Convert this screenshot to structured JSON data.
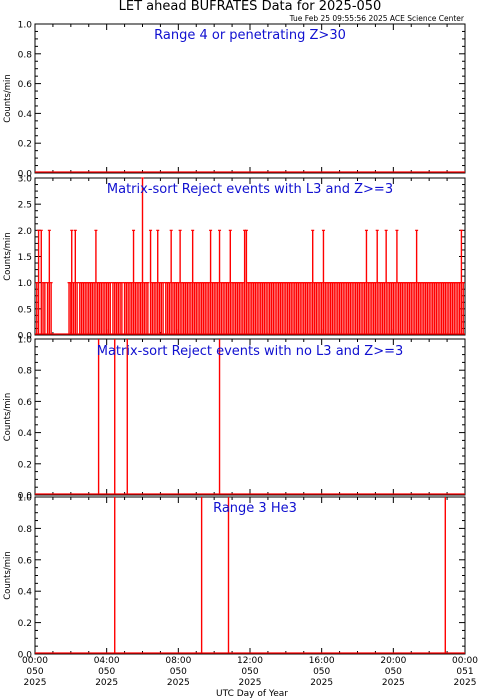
{
  "title": "LET ahead BUFRATES Data for 2025-050",
  "timestamp": "Tue Feb 25 09:55:56 2025 ACE Science Center",
  "x_axis_label": "UTC Day of Year",
  "x_ticks": [
    {
      "time": "00:00",
      "doy": "050",
      "year": "2025"
    },
    {
      "time": "04:00",
      "doy": "050",
      "year": "2025"
    },
    {
      "time": "08:00",
      "doy": "050",
      "year": "2025"
    },
    {
      "time": "12:00",
      "doy": "050",
      "year": "2025"
    },
    {
      "time": "16:00",
      "doy": "050",
      "year": "2025"
    },
    {
      "time": "20:00",
      "doy": "050",
      "year": "2025"
    },
    {
      "time": "00:00",
      "doy": "051",
      "year": "2025"
    }
  ],
  "colors": {
    "data": "#ff0000",
    "panel_title": "#1010d0",
    "axes": "#000000"
  },
  "chart_data": [
    {
      "type": "line",
      "title": "Range 4 or   penetrating Z>30",
      "ylabel": "Counts/min",
      "ylim": [
        0,
        1.0
      ],
      "yticks": [
        "0.0",
        "0.2",
        "0.4",
        "0.6",
        "0.8",
        "1.0"
      ],
      "xlim_hours": [
        0,
        24
      ],
      "spikes": []
    },
    {
      "type": "line",
      "title": "Matrix-sort Reject events with L3 and Z>=3",
      "ylabel": "Counts/min",
      "ylim": [
        0,
        3.0
      ],
      "yticks": [
        "0.0",
        "0.5",
        "1.0",
        "1.5",
        "2.0",
        "2.5",
        "3.0"
      ],
      "xlim_hours": [
        0,
        24
      ],
      "spikes": [
        {
          "x": 0.1,
          "y": 1
        },
        {
          "x": 0.2,
          "y": 2
        },
        {
          "x": 0.35,
          "y": 2
        },
        {
          "x": 0.45,
          "y": 1
        },
        {
          "x": 0.55,
          "y": 1
        },
        {
          "x": 0.7,
          "y": 1
        },
        {
          "x": 0.8,
          "y": 2
        },
        {
          "x": 0.9,
          "y": 1
        },
        {
          "x": 1.9,
          "y": 1
        },
        {
          "x": 2.0,
          "y": 1
        },
        {
          "x": 2.05,
          "y": 2
        },
        {
          "x": 2.15,
          "y": 1
        },
        {
          "x": 2.25,
          "y": 2
        },
        {
          "x": 2.35,
          "y": 1
        },
        {
          "x": 2.5,
          "y": 1
        },
        {
          "x": 2.6,
          "y": 1
        },
        {
          "x": 2.7,
          "y": 1
        },
        {
          "x": 2.8,
          "y": 1
        },
        {
          "x": 2.9,
          "y": 1
        },
        {
          "x": 3.0,
          "y": 1
        },
        {
          "x": 3.1,
          "y": 1
        },
        {
          "x": 3.2,
          "y": 1
        },
        {
          "x": 3.3,
          "y": 1
        },
        {
          "x": 3.4,
          "y": 2
        },
        {
          "x": 3.5,
          "y": 1
        },
        {
          "x": 3.6,
          "y": 1
        },
        {
          "x": 3.7,
          "y": 1
        },
        {
          "x": 3.8,
          "y": 1
        },
        {
          "x": 3.9,
          "y": 1
        },
        {
          "x": 4.0,
          "y": 1
        },
        {
          "x": 4.1,
          "y": 1
        },
        {
          "x": 4.2,
          "y": 1
        },
        {
          "x": 4.35,
          "y": 1
        },
        {
          "x": 4.45,
          "y": 1
        },
        {
          "x": 4.55,
          "y": 1
        },
        {
          "x": 4.65,
          "y": 1
        },
        {
          "x": 4.75,
          "y": 1
        },
        {
          "x": 4.85,
          "y": 1
        },
        {
          "x": 5.0,
          "y": 1
        },
        {
          "x": 5.1,
          "y": 1
        },
        {
          "x": 5.2,
          "y": 1
        },
        {
          "x": 5.3,
          "y": 1
        },
        {
          "x": 5.4,
          "y": 1
        },
        {
          "x": 5.5,
          "y": 2
        },
        {
          "x": 5.6,
          "y": 1
        },
        {
          "x": 5.7,
          "y": 1
        },
        {
          "x": 5.8,
          "y": 1
        },
        {
          "x": 5.9,
          "y": 1
        },
        {
          "x": 6.0,
          "y": 3
        },
        {
          "x": 6.1,
          "y": 1
        },
        {
          "x": 6.2,
          "y": 1
        },
        {
          "x": 6.3,
          "y": 1
        },
        {
          "x": 6.45,
          "y": 2
        },
        {
          "x": 6.55,
          "y": 1
        },
        {
          "x": 6.65,
          "y": 1
        },
        {
          "x": 6.75,
          "y": 1
        },
        {
          "x": 6.85,
          "y": 2
        },
        {
          "x": 6.95,
          "y": 1
        },
        {
          "x": 7.05,
          "y": 1
        },
        {
          "x": 7.15,
          "y": 1
        },
        {
          "x": 7.3,
          "y": 1
        },
        {
          "x": 7.4,
          "y": 1
        },
        {
          "x": 7.5,
          "y": 1
        },
        {
          "x": 7.6,
          "y": 2
        },
        {
          "x": 7.7,
          "y": 1
        },
        {
          "x": 7.8,
          "y": 1
        },
        {
          "x": 7.9,
          "y": 1
        },
        {
          "x": 8.0,
          "y": 1
        },
        {
          "x": 8.1,
          "y": 2
        },
        {
          "x": 8.2,
          "y": 1
        },
        {
          "x": 8.3,
          "y": 1
        },
        {
          "x": 8.4,
          "y": 1
        },
        {
          "x": 8.5,
          "y": 1
        },
        {
          "x": 8.6,
          "y": 1
        },
        {
          "x": 8.7,
          "y": 1
        },
        {
          "x": 8.8,
          "y": 2
        },
        {
          "x": 8.9,
          "y": 1
        },
        {
          "x": 9.0,
          "y": 1
        },
        {
          "x": 9.1,
          "y": 1
        },
        {
          "x": 9.2,
          "y": 1
        },
        {
          "x": 9.3,
          "y": 1
        },
        {
          "x": 9.4,
          "y": 1
        },
        {
          "x": 9.5,
          "y": 1
        },
        {
          "x": 9.6,
          "y": 1
        },
        {
          "x": 9.7,
          "y": 1
        },
        {
          "x": 9.8,
          "y": 2
        },
        {
          "x": 9.9,
          "y": 1
        },
        {
          "x": 10.0,
          "y": 1
        },
        {
          "x": 10.1,
          "y": 1
        },
        {
          "x": 10.2,
          "y": 1
        },
        {
          "x": 10.3,
          "y": 2
        },
        {
          "x": 10.4,
          "y": 1
        },
        {
          "x": 10.5,
          "y": 1
        },
        {
          "x": 10.6,
          "y": 1
        },
        {
          "x": 10.7,
          "y": 1
        },
        {
          "x": 10.8,
          "y": 1
        },
        {
          "x": 10.9,
          "y": 2
        },
        {
          "x": 11.0,
          "y": 1
        },
        {
          "x": 11.1,
          "y": 1
        },
        {
          "x": 11.2,
          "y": 1
        },
        {
          "x": 11.3,
          "y": 1
        },
        {
          "x": 11.4,
          "y": 1
        },
        {
          "x": 11.5,
          "y": 1
        },
        {
          "x": 11.6,
          "y": 1
        },
        {
          "x": 11.7,
          "y": 2
        },
        {
          "x": 11.8,
          "y": 2
        },
        {
          "x": 11.9,
          "y": 1
        },
        {
          "x": 12.0,
          "y": 1
        },
        {
          "x": 12.1,
          "y": 1
        },
        {
          "x": 12.2,
          "y": 1
        },
        {
          "x": 12.3,
          "y": 1
        },
        {
          "x": 12.4,
          "y": 1
        },
        {
          "x": 12.5,
          "y": 1
        },
        {
          "x": 12.6,
          "y": 1
        },
        {
          "x": 12.7,
          "y": 1
        },
        {
          "x": 12.8,
          "y": 1
        },
        {
          "x": 12.9,
          "y": 1
        },
        {
          "x": 13.0,
          "y": 1
        },
        {
          "x": 13.1,
          "y": 1
        },
        {
          "x": 13.2,
          "y": 1
        },
        {
          "x": 13.3,
          "y": 1
        },
        {
          "x": 13.4,
          "y": 1
        },
        {
          "x": 13.5,
          "y": 1
        },
        {
          "x": 13.6,
          "y": 1
        },
        {
          "x": 13.7,
          "y": 1
        },
        {
          "x": 13.8,
          "y": 1
        },
        {
          "x": 13.9,
          "y": 1
        },
        {
          "x": 14.0,
          "y": 1
        },
        {
          "x": 14.1,
          "y": 1
        },
        {
          "x": 14.2,
          "y": 1
        },
        {
          "x": 14.3,
          "y": 1
        },
        {
          "x": 14.4,
          "y": 1
        },
        {
          "x": 14.5,
          "y": 1
        },
        {
          "x": 14.6,
          "y": 1
        },
        {
          "x": 14.7,
          "y": 1
        },
        {
          "x": 14.8,
          "y": 1
        },
        {
          "x": 14.9,
          "y": 1
        },
        {
          "x": 15.0,
          "y": 1
        },
        {
          "x": 15.1,
          "y": 1
        },
        {
          "x": 15.2,
          "y": 1
        },
        {
          "x": 15.3,
          "y": 1
        },
        {
          "x": 15.4,
          "y": 1
        },
        {
          "x": 15.5,
          "y": 2
        },
        {
          "x": 15.6,
          "y": 1
        },
        {
          "x": 15.7,
          "y": 1
        },
        {
          "x": 15.8,
          "y": 1
        },
        {
          "x": 15.9,
          "y": 1
        },
        {
          "x": 16.0,
          "y": 1
        },
        {
          "x": 16.1,
          "y": 2
        },
        {
          "x": 16.2,
          "y": 1
        },
        {
          "x": 16.3,
          "y": 1
        },
        {
          "x": 16.4,
          "y": 1
        },
        {
          "x": 16.5,
          "y": 1
        },
        {
          "x": 16.6,
          "y": 1
        },
        {
          "x": 16.7,
          "y": 1
        },
        {
          "x": 16.8,
          "y": 1
        },
        {
          "x": 16.9,
          "y": 1
        },
        {
          "x": 17.0,
          "y": 1
        },
        {
          "x": 17.1,
          "y": 1
        },
        {
          "x": 17.2,
          "y": 1
        },
        {
          "x": 17.3,
          "y": 1
        },
        {
          "x": 17.4,
          "y": 1
        },
        {
          "x": 17.5,
          "y": 1
        },
        {
          "x": 17.6,
          "y": 1
        },
        {
          "x": 17.7,
          "y": 1
        },
        {
          "x": 17.8,
          "y": 1
        },
        {
          "x": 17.9,
          "y": 1
        },
        {
          "x": 18.0,
          "y": 1
        },
        {
          "x": 18.1,
          "y": 1
        },
        {
          "x": 18.2,
          "y": 1
        },
        {
          "x": 18.3,
          "y": 1
        },
        {
          "x": 18.4,
          "y": 1
        },
        {
          "x": 18.5,
          "y": 2
        },
        {
          "x": 18.6,
          "y": 1
        },
        {
          "x": 18.7,
          "y": 1
        },
        {
          "x": 18.8,
          "y": 1
        },
        {
          "x": 18.9,
          "y": 1
        },
        {
          "x": 19.0,
          "y": 1
        },
        {
          "x": 19.1,
          "y": 2
        },
        {
          "x": 19.2,
          "y": 1
        },
        {
          "x": 19.3,
          "y": 1
        },
        {
          "x": 19.4,
          "y": 1
        },
        {
          "x": 19.5,
          "y": 1
        },
        {
          "x": 19.6,
          "y": 2
        },
        {
          "x": 19.7,
          "y": 1
        },
        {
          "x": 19.8,
          "y": 1
        },
        {
          "x": 19.9,
          "y": 1
        },
        {
          "x": 20.0,
          "y": 1
        },
        {
          "x": 20.1,
          "y": 1
        },
        {
          "x": 20.2,
          "y": 2
        },
        {
          "x": 20.3,
          "y": 1
        },
        {
          "x": 20.4,
          "y": 1
        },
        {
          "x": 20.5,
          "y": 1
        },
        {
          "x": 20.6,
          "y": 1
        },
        {
          "x": 20.7,
          "y": 1
        },
        {
          "x": 20.8,
          "y": 1
        },
        {
          "x": 20.9,
          "y": 1
        },
        {
          "x": 21.0,
          "y": 1
        },
        {
          "x": 21.1,
          "y": 1
        },
        {
          "x": 21.2,
          "y": 1
        },
        {
          "x": 21.3,
          "y": 2
        },
        {
          "x": 21.4,
          "y": 1
        },
        {
          "x": 21.5,
          "y": 1
        },
        {
          "x": 21.6,
          "y": 1
        },
        {
          "x": 21.7,
          "y": 1
        },
        {
          "x": 21.8,
          "y": 1
        },
        {
          "x": 21.9,
          "y": 1
        },
        {
          "x": 22.0,
          "y": 1
        },
        {
          "x": 22.1,
          "y": 1
        },
        {
          "x": 22.2,
          "y": 1
        },
        {
          "x": 22.3,
          "y": 1
        },
        {
          "x": 22.4,
          "y": 1
        },
        {
          "x": 22.5,
          "y": 1
        },
        {
          "x": 22.6,
          "y": 1
        },
        {
          "x": 22.7,
          "y": 1
        },
        {
          "x": 22.8,
          "y": 1
        },
        {
          "x": 22.9,
          "y": 1
        },
        {
          "x": 23.0,
          "y": 1
        },
        {
          "x": 23.1,
          "y": 1
        },
        {
          "x": 23.2,
          "y": 1
        },
        {
          "x": 23.3,
          "y": 1
        },
        {
          "x": 23.4,
          "y": 1
        },
        {
          "x": 23.5,
          "y": 1
        },
        {
          "x": 23.6,
          "y": 1
        },
        {
          "x": 23.7,
          "y": 1
        },
        {
          "x": 23.8,
          "y": 2
        },
        {
          "x": 23.9,
          "y": 1
        }
      ]
    },
    {
      "type": "line",
      "title": "Matrix-sort Reject events with no L3 and Z>=3",
      "ylabel": "Counts/min",
      "ylim": [
        0,
        1.0
      ],
      "yticks": [
        "0.0",
        "0.2",
        "0.4",
        "0.6",
        "0.8",
        "1.0"
      ],
      "xlim_hours": [
        0,
        24
      ],
      "spikes": [
        {
          "x": 3.55,
          "y": 1
        },
        {
          "x": 4.45,
          "y": 1
        },
        {
          "x": 5.15,
          "y": 1
        },
        {
          "x": 10.3,
          "y": 1
        }
      ]
    },
    {
      "type": "line",
      "title": "Range 3 He3",
      "ylabel": "Counts/min",
      "ylim": [
        0,
        1.0
      ],
      "yticks": [
        "0.0",
        "0.2",
        "0.4",
        "0.6",
        "0.8",
        "1.0"
      ],
      "xlim_hours": [
        0,
        24
      ],
      "spikes": [
        {
          "x": 4.45,
          "y": 1
        },
        {
          "x": 9.3,
          "y": 1
        },
        {
          "x": 10.8,
          "y": 1
        },
        {
          "x": 22.9,
          "y": 1
        }
      ]
    }
  ]
}
